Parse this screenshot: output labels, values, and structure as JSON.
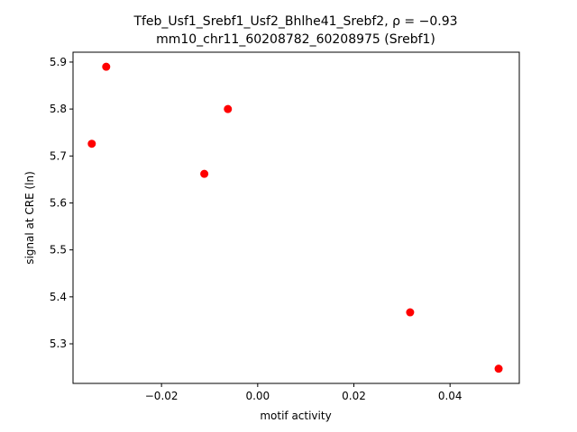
{
  "chart_data": {
    "type": "scatter",
    "title": [
      "Tfeb_Usf1_Srebf1_Usf2_Bhlhe41_Srebf2, ρ = −0.93",
      "mm10_chr11_60208782_60208975 (Srebf1)"
    ],
    "xlabel": "motif activity",
    "ylabel": "signal at CRE (ln)",
    "x": [
      -0.0345,
      -0.0315,
      -0.0111,
      -0.0062,
      0.0317,
      0.0501
    ],
    "values": [
      5.726,
      5.89,
      5.662,
      5.8,
      5.367,
      5.247
    ],
    "color": "#ff0000",
    "xlim": [
      -0.0384,
      0.0544
    ],
    "ylim": [
      5.2157,
      5.921
    ],
    "xticks": [
      {
        "value": -0.02,
        "label": "−0.02"
      },
      {
        "value": 0,
        "label": "0.00"
      },
      0.02,
      0.04
    ],
    "yticks": [
      5.3,
      5.4,
      5.5,
      5.6,
      5.7,
      5.8,
      5.9
    ]
  }
}
